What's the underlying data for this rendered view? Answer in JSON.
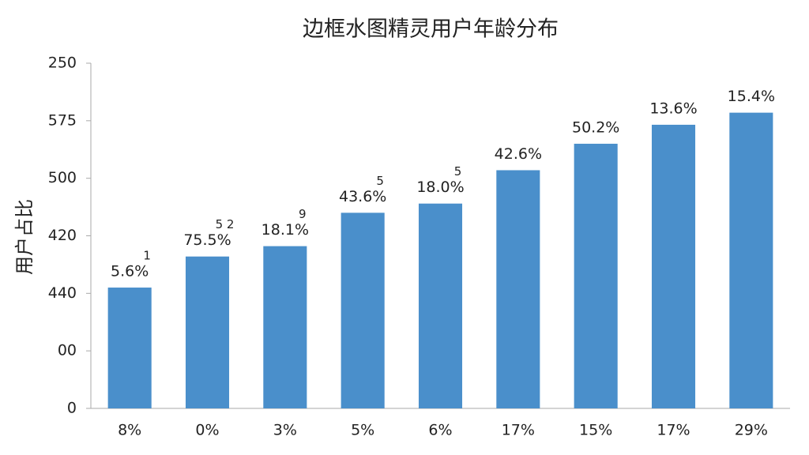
{
  "chart_data": {
    "type": "bar",
    "title": "边框水图精灵用户年龄分布",
    "y_label": "用户占比",
    "categories": [
      "8%",
      "0%",
      "3%",
      "5%",
      "6%",
      "17%",
      "15%",
      "17%",
      "29%"
    ],
    "values": [
      2.1,
      2.64,
      2.82,
      3.4,
      3.56,
      4.14,
      4.6,
      4.93,
      5.14
    ],
    "value_labels": [
      "5.6%",
      "75.5%",
      "18.1%",
      "43.6%",
      "18.0%",
      "42.6%",
      "50.2%",
      "13.6%",
      "15.4%"
    ],
    "superscripts": [
      "1",
      "5 2",
      "9",
      "5",
      "5",
      null,
      null,
      null,
      null
    ],
    "color": "#4a8fcb",
    "ylim": [
      0,
      6
    ],
    "yticks": [
      {
        "value": 0,
        "label": "0"
      },
      {
        "value": 1,
        "label": "00"
      },
      {
        "value": 2,
        "label": "440"
      },
      {
        "value": 3,
        "label": "420"
      },
      {
        "value": 4,
        "label": "500"
      },
      {
        "value": 5,
        "label": "575"
      },
      {
        "value": 6,
        "label": "250"
      }
    ],
    "grid": false
  }
}
